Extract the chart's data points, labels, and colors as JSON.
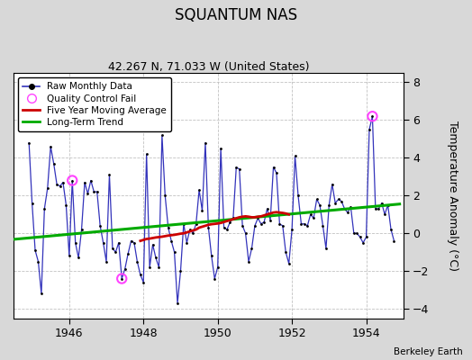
{
  "title": "SQUANTUM NAS",
  "subtitle": "42.267 N, 71.033 W (United States)",
  "ylabel": "Temperature Anomaly (°C)",
  "credit": "Berkeley Earth",
  "xlim": [
    1944.5,
    1955.0
  ],
  "ylim": [
    -4.5,
    8.5
  ],
  "yticks": [
    -4,
    -2,
    0,
    2,
    4,
    6,
    8
  ],
  "xticks": [
    1946,
    1948,
    1950,
    1952,
    1954
  ],
  "bg_color": "#d8d8d8",
  "plot_bg_color": "#ffffff",
  "raw_color": "#3333bb",
  "ma_color": "#cc0000",
  "trend_color": "#00aa00",
  "qc_color": "#ff44ff",
  "raw_data": [
    [
      1944.917,
      4.8
    ],
    [
      1945.0,
      1.6
    ],
    [
      1945.083,
      -0.9
    ],
    [
      1945.167,
      -1.5
    ],
    [
      1945.25,
      -3.2
    ],
    [
      1945.333,
      1.3
    ],
    [
      1945.417,
      2.4
    ],
    [
      1945.5,
      4.6
    ],
    [
      1945.583,
      3.7
    ],
    [
      1945.667,
      2.6
    ],
    [
      1945.75,
      2.5
    ],
    [
      1945.833,
      2.7
    ],
    [
      1945.917,
      1.5
    ],
    [
      1946.0,
      -1.2
    ],
    [
      1946.083,
      2.8
    ],
    [
      1946.167,
      -0.5
    ],
    [
      1946.25,
      -1.3
    ],
    [
      1946.333,
      0.2
    ],
    [
      1946.417,
      2.7
    ],
    [
      1946.5,
      2.1
    ],
    [
      1946.583,
      2.8
    ],
    [
      1946.667,
      2.2
    ],
    [
      1946.75,
      2.2
    ],
    [
      1946.833,
      0.4
    ],
    [
      1946.917,
      -0.5
    ],
    [
      1947.0,
      -1.5
    ],
    [
      1947.083,
      3.1
    ],
    [
      1947.167,
      -0.8
    ],
    [
      1947.25,
      -1.0
    ],
    [
      1947.333,
      -0.5
    ],
    [
      1947.417,
      -2.4
    ],
    [
      1947.5,
      -1.9
    ],
    [
      1947.583,
      -1.1
    ],
    [
      1947.667,
      -0.4
    ],
    [
      1947.75,
      -0.5
    ],
    [
      1947.833,
      -1.5
    ],
    [
      1947.917,
      -2.2
    ],
    [
      1948.0,
      -2.6
    ],
    [
      1948.083,
      4.2
    ],
    [
      1948.167,
      -1.8
    ],
    [
      1948.25,
      -0.6
    ],
    [
      1948.333,
      -1.3
    ],
    [
      1948.417,
      -1.8
    ],
    [
      1948.5,
      5.2
    ],
    [
      1948.583,
      2.0
    ],
    [
      1948.667,
      0.3
    ],
    [
      1948.75,
      -0.4
    ],
    [
      1948.833,
      -1.0
    ],
    [
      1948.917,
      -3.7
    ],
    [
      1949.0,
      -2.0
    ],
    [
      1949.083,
      0.5
    ],
    [
      1949.167,
      -0.5
    ],
    [
      1949.25,
      0.2
    ],
    [
      1949.333,
      0.0
    ],
    [
      1949.417,
      0.5
    ],
    [
      1949.5,
      2.3
    ],
    [
      1949.583,
      1.2
    ],
    [
      1949.667,
      4.8
    ],
    [
      1949.75,
      0.3
    ],
    [
      1949.833,
      -1.2
    ],
    [
      1949.917,
      -2.4
    ],
    [
      1950.0,
      -1.8
    ],
    [
      1950.083,
      4.5
    ],
    [
      1950.167,
      0.3
    ],
    [
      1950.25,
      0.2
    ],
    [
      1950.333,
      0.6
    ],
    [
      1950.417,
      0.8
    ],
    [
      1950.5,
      3.5
    ],
    [
      1950.583,
      3.4
    ],
    [
      1950.667,
      0.4
    ],
    [
      1950.75,
      0.0
    ],
    [
      1950.833,
      -1.5
    ],
    [
      1950.917,
      -0.8
    ],
    [
      1951.0,
      0.4
    ],
    [
      1951.083,
      0.8
    ],
    [
      1951.167,
      0.5
    ],
    [
      1951.25,
      0.6
    ],
    [
      1951.333,
      1.3
    ],
    [
      1951.417,
      0.7
    ],
    [
      1951.5,
      3.5
    ],
    [
      1951.583,
      3.2
    ],
    [
      1951.667,
      0.5
    ],
    [
      1951.75,
      0.4
    ],
    [
      1951.833,
      -1.0
    ],
    [
      1951.917,
      -1.6
    ],
    [
      1952.0,
      0.2
    ],
    [
      1952.083,
      4.1
    ],
    [
      1952.167,
      2.0
    ],
    [
      1952.25,
      0.5
    ],
    [
      1952.333,
      0.5
    ],
    [
      1952.417,
      0.4
    ],
    [
      1952.5,
      1.0
    ],
    [
      1952.583,
      0.8
    ],
    [
      1952.667,
      1.8
    ],
    [
      1952.75,
      1.5
    ],
    [
      1952.833,
      0.4
    ],
    [
      1952.917,
      -0.8
    ],
    [
      1953.0,
      1.5
    ],
    [
      1953.083,
      2.6
    ],
    [
      1953.167,
      1.6
    ],
    [
      1953.25,
      1.8
    ],
    [
      1953.333,
      1.7
    ],
    [
      1953.417,
      1.3
    ],
    [
      1953.5,
      1.1
    ],
    [
      1953.583,
      1.4
    ],
    [
      1953.667,
      0.0
    ],
    [
      1953.75,
      0.0
    ],
    [
      1953.833,
      -0.2
    ],
    [
      1953.917,
      -0.5
    ],
    [
      1954.0,
      -0.2
    ],
    [
      1954.083,
      5.5
    ],
    [
      1954.167,
      6.2
    ],
    [
      1954.25,
      1.3
    ],
    [
      1954.333,
      1.3
    ],
    [
      1954.417,
      1.6
    ],
    [
      1954.5,
      1.0
    ],
    [
      1954.583,
      1.5
    ],
    [
      1954.667,
      0.2
    ],
    [
      1954.75,
      -0.4
    ]
  ],
  "qc_fail_points": [
    [
      1946.083,
      2.8
    ],
    [
      1947.417,
      -2.4
    ],
    [
      1954.167,
      6.2
    ]
  ],
  "moving_avg": [
    [
      1947.917,
      -0.4
    ],
    [
      1948.0,
      -0.35
    ],
    [
      1948.083,
      -0.3
    ],
    [
      1948.167,
      -0.28
    ],
    [
      1948.25,
      -0.25
    ],
    [
      1948.333,
      -0.22
    ],
    [
      1948.417,
      -0.2
    ],
    [
      1948.5,
      -0.18
    ],
    [
      1948.583,
      -0.15
    ],
    [
      1948.667,
      -0.12
    ],
    [
      1948.75,
      -0.1
    ],
    [
      1948.833,
      -0.08
    ],
    [
      1948.917,
      -0.05
    ],
    [
      1949.0,
      -0.02
    ],
    [
      1949.083,
      0.0
    ],
    [
      1949.167,
      0.05
    ],
    [
      1949.25,
      0.1
    ],
    [
      1949.333,
      0.15
    ],
    [
      1949.417,
      0.2
    ],
    [
      1949.5,
      0.3
    ],
    [
      1949.583,
      0.35
    ],
    [
      1949.667,
      0.4
    ],
    [
      1949.75,
      0.45
    ],
    [
      1949.833,
      0.48
    ],
    [
      1949.917,
      0.5
    ],
    [
      1950.0,
      0.52
    ],
    [
      1950.083,
      0.55
    ],
    [
      1950.167,
      0.6
    ],
    [
      1950.25,
      0.65
    ],
    [
      1950.333,
      0.7
    ],
    [
      1950.417,
      0.75
    ],
    [
      1950.5,
      0.8
    ],
    [
      1950.583,
      0.85
    ],
    [
      1950.667,
      0.88
    ],
    [
      1950.75,
      0.9
    ],
    [
      1950.833,
      0.88
    ],
    [
      1950.917,
      0.85
    ],
    [
      1951.0,
      0.85
    ],
    [
      1951.083,
      0.88
    ],
    [
      1951.167,
      0.9
    ],
    [
      1951.25,
      0.95
    ],
    [
      1951.333,
      1.0
    ],
    [
      1951.417,
      1.05
    ],
    [
      1951.5,
      1.1
    ],
    [
      1951.583,
      1.12
    ],
    [
      1951.667,
      1.1
    ],
    [
      1951.75,
      1.08
    ],
    [
      1951.833,
      1.05
    ],
    [
      1951.917,
      1.0
    ]
  ],
  "trend_line": [
    [
      1944.5,
      -0.32
    ],
    [
      1954.9,
      1.55
    ]
  ]
}
